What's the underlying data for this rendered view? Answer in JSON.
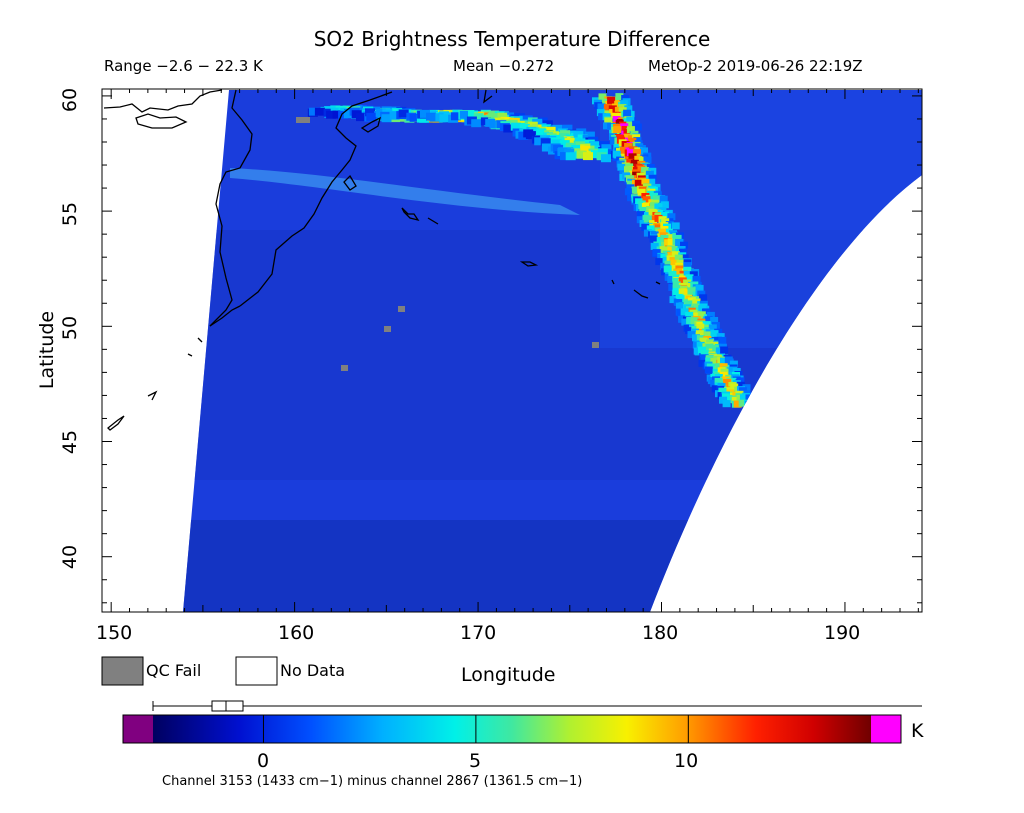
{
  "title": "SO2 Brightness Temperature Difference",
  "subtitle": {
    "range": "Range −2.6 − 22.3 K",
    "mean": "Mean −0.272",
    "satellite": "MetOp-2 2019-06-26 22:19Z"
  },
  "axes": {
    "xlabel": "Longitude",
    "ylabel": "Latitude",
    "xticks": [
      "150",
      "160",
      "170",
      "180",
      "190"
    ],
    "yticks": [
      "40",
      "45",
      "50",
      "55",
      "60"
    ]
  },
  "legend": {
    "qc_fail": "QC Fail",
    "no_data": "No Data"
  },
  "colorbar": {
    "ticks": [
      "0",
      "5",
      "10"
    ],
    "unit": "K",
    "caption": "Channel 3153 (1433 cm−1) minus channel 2867 (1361.5 cm−1)"
  },
  "colors": {
    "qc_fail": "#808080",
    "no_data": "#ffffff",
    "below_range": "#800080",
    "above_range": "#ff00ff",
    "background_field": "#1a3ddc"
  },
  "chart_data": {
    "type": "heatmap",
    "xlim": [
      149.5,
      194.2
    ],
    "ylim": [
      37.6,
      60.3
    ],
    "colorbar_range": [
      -2.6,
      14.3
    ],
    "stats": {
      "min": -2.6,
      "max": 22.3,
      "mean": -0.272,
      "unit": "K"
    },
    "plume": [
      {
        "lon": 177.0,
        "lat": 60.0,
        "value": 12
      },
      {
        "lon": 178.0,
        "lat": 58.0,
        "value": 16
      },
      {
        "lon": 178.8,
        "lat": 56.0,
        "value": 11
      },
      {
        "lon": 180.0,
        "lat": 54.0,
        "value": 10
      },
      {
        "lon": 181.0,
        "lat": 52.0,
        "value": 10
      },
      {
        "lon": 182.0,
        "lat": 50.0,
        "value": 9
      },
      {
        "lon": 183.2,
        "lat": 48.0,
        "value": 9
      },
      {
        "lon": 184.0,
        "lat": 46.8,
        "value": 9
      }
    ],
    "northern_band": [
      {
        "lon": 162.0,
        "lat": 59.5,
        "value": 5
      },
      {
        "lon": 166.0,
        "lat": 59.3,
        "value": 7
      },
      {
        "lon": 170.0,
        "lat": 59.3,
        "value": 11
      },
      {
        "lon": 174.0,
        "lat": 58.5,
        "value": 7
      },
      {
        "lon": 176.0,
        "lat": 57.5,
        "value": 8
      }
    ]
  }
}
